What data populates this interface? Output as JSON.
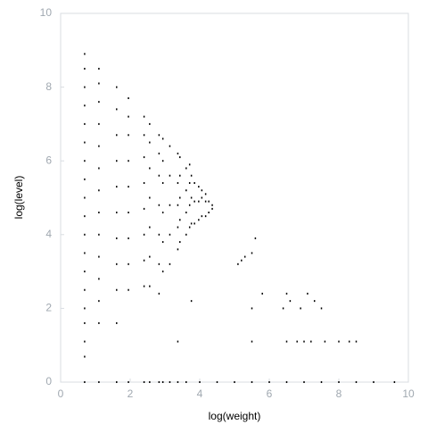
{
  "chart_data": {
    "type": "scatter",
    "xlabel": "log(weight)",
    "ylabel": "log(level)",
    "color": "#000000",
    "xlim": [
      0,
      10
    ],
    "ylim": [
      0,
      10
    ],
    "xticks": [
      0,
      2,
      4,
      6,
      8,
      10
    ],
    "yticks": [
      0,
      2,
      4,
      6,
      8,
      10
    ],
    "grid": false,
    "x": [
      0.69,
      0.69,
      0.69,
      0.69,
      0.69,
      0.69,
      0.69,
      0.69,
      0.69,
      0.69,
      0.69,
      0.69,
      0.69,
      0.69,
      0.69,
      0.69,
      0.69,
      0.69,
      0.69,
      1.1,
      1.1,
      1.1,
      1.1,
      1.1,
      1.1,
      1.1,
      1.1,
      1.1,
      1.1,
      1.1,
      1.1,
      1.1,
      1.1,
      1.61,
      1.61,
      1.61,
      1.61,
      1.61,
      1.61,
      1.61,
      1.61,
      1.61,
      1.61,
      1.61,
      1.95,
      1.95,
      1.95,
      1.95,
      1.95,
      1.95,
      1.95,
      1.95,
      1.95,
      1.95,
      2.4,
      2.4,
      2.4,
      2.4,
      2.4,
      2.4,
      2.4,
      2.4,
      2.4,
      2.56,
      2.56,
      2.56,
      2.56,
      2.56,
      2.56,
      2.56,
      2.56,
      2.83,
      2.83,
      2.83,
      2.83,
      2.83,
      2.83,
      2.83,
      2.83,
      2.94,
      2.94,
      2.94,
      2.94,
      2.94,
      2.94,
      2.94,
      3.14,
      3.14,
      3.14,
      3.14,
      3.14,
      3.14,
      3.37,
      3.37,
      3.37,
      3.37,
      3.37,
      3.37,
      3.37,
      3.43,
      3.43,
      3.43,
      3.43,
      3.43,
      3.61,
      3.61,
      3.61,
      3.61,
      3.61,
      3.71,
      3.71,
      3.71,
      3.71,
      3.76,
      3.76,
      3.76,
      3.76,
      3.85,
      3.85,
      3.85,
      3.97,
      3.97,
      3.97,
      4.06,
      4.06,
      4.06,
      4.17,
      4.17,
      4.17,
      4.26,
      4.26,
      4.36,
      4.36,
      5.1,
      5.2,
      5.3,
      5.5,
      5.6,
      5.5,
      5.8,
      5.5,
      6.4,
      6.5,
      6.6,
      6.9,
      7.1,
      7.3,
      7.5,
      6.5,
      6.8,
      7.0,
      7.2,
      7.6,
      8.0,
      8.3,
      8.5,
      4.0,
      4.5,
      5.0,
      5.5,
      6.0,
      6.5,
      7.0,
      7.5,
      8.0,
      8.5,
      9.0,
      9.6
    ],
    "values": [
      0,
      0.69,
      1.1,
      1.6,
      2.0,
      2.5,
      3.0,
      3.5,
      4.0,
      4.5,
      5.0,
      5.5,
      6.0,
      6.5,
      7.0,
      7.5,
      8.0,
      8.5,
      8.9,
      0,
      1.6,
      2.2,
      2.8,
      3.4,
      4.0,
      4.6,
      5.2,
      5.8,
      6.4,
      7.0,
      7.6,
      8.1,
      8.5,
      0,
      1.6,
      2.5,
      3.2,
      3.9,
      4.6,
      5.3,
      6.0,
      6.7,
      7.4,
      8.0,
      0,
      2.5,
      3.2,
      3.9,
      4.6,
      5.3,
      6.0,
      6.7,
      7.2,
      7.7,
      0,
      2.6,
      3.3,
      4.0,
      4.7,
      5.4,
      6.1,
      6.7,
      7.2,
      0,
      2.6,
      3.4,
      4.2,
      5.0,
      5.8,
      6.5,
      7.0,
      0,
      2.4,
      3.2,
      4.0,
      4.8,
      5.6,
      6.2,
      6.7,
      0,
      3.0,
      3.8,
      4.6,
      5.4,
      6.0,
      6.6,
      0,
      3.2,
      4.0,
      4.8,
      5.6,
      6.4,
      0,
      1.1,
      3.6,
      4.2,
      4.8,
      5.4,
      6.2,
      3.8,
      4.4,
      5.0,
      5.6,
      6.1,
      0,
      4.0,
      4.6,
      5.2,
      5.8,
      4.2,
      4.8,
      5.4,
      5.9,
      2.2,
      4.3,
      5.0,
      5.6,
      4.3,
      4.9,
      5.4,
      4.4,
      4.9,
      5.3,
      4.5,
      5.0,
      5.2,
      4.5,
      4.9,
      5.1,
      4.6,
      4.9,
      4.7,
      4.8,
      3.2,
      3.3,
      3.4,
      3.5,
      3.9,
      2.0,
      2.4,
      1.1,
      2.0,
      2.4,
      2.2,
      2.0,
      2.4,
      2.2,
      2.0,
      1.1,
      1.1,
      1.1,
      1.1,
      1.1,
      1.1,
      1.1,
      1.1,
      0,
      0,
      0,
      0,
      0,
      0,
      0,
      0,
      0,
      0,
      0,
      0
    ]
  }
}
